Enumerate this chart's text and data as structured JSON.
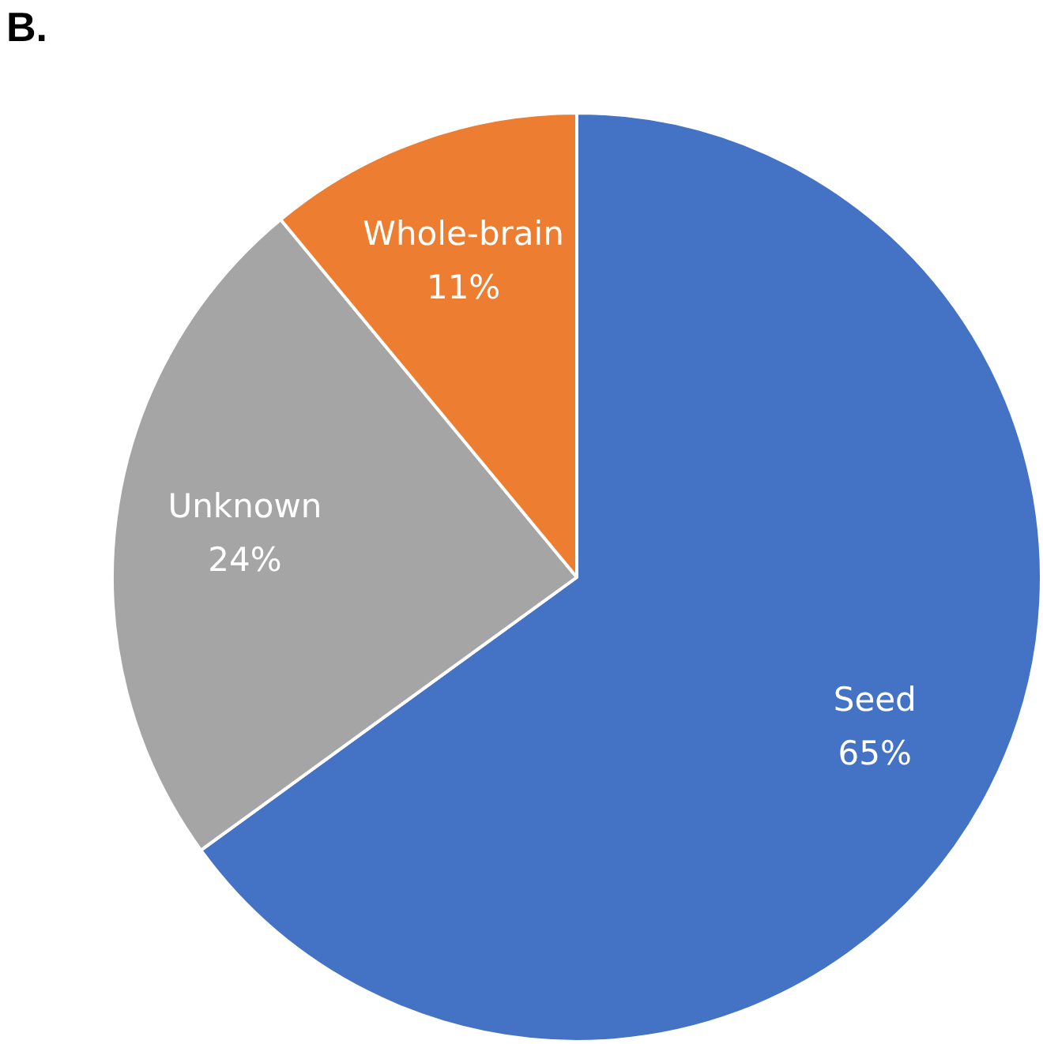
{
  "chart_data": {
    "type": "pie",
    "title": "B.",
    "categories": [
      "Seed",
      "Unknown",
      "Whole-brain"
    ],
    "values": [
      65,
      24,
      11
    ],
    "value_labels": [
      "65%",
      "24%",
      "11%"
    ],
    "colors": [
      "#4472c4",
      "#a5a5a5",
      "#ed7d31"
    ],
    "legend": false
  }
}
